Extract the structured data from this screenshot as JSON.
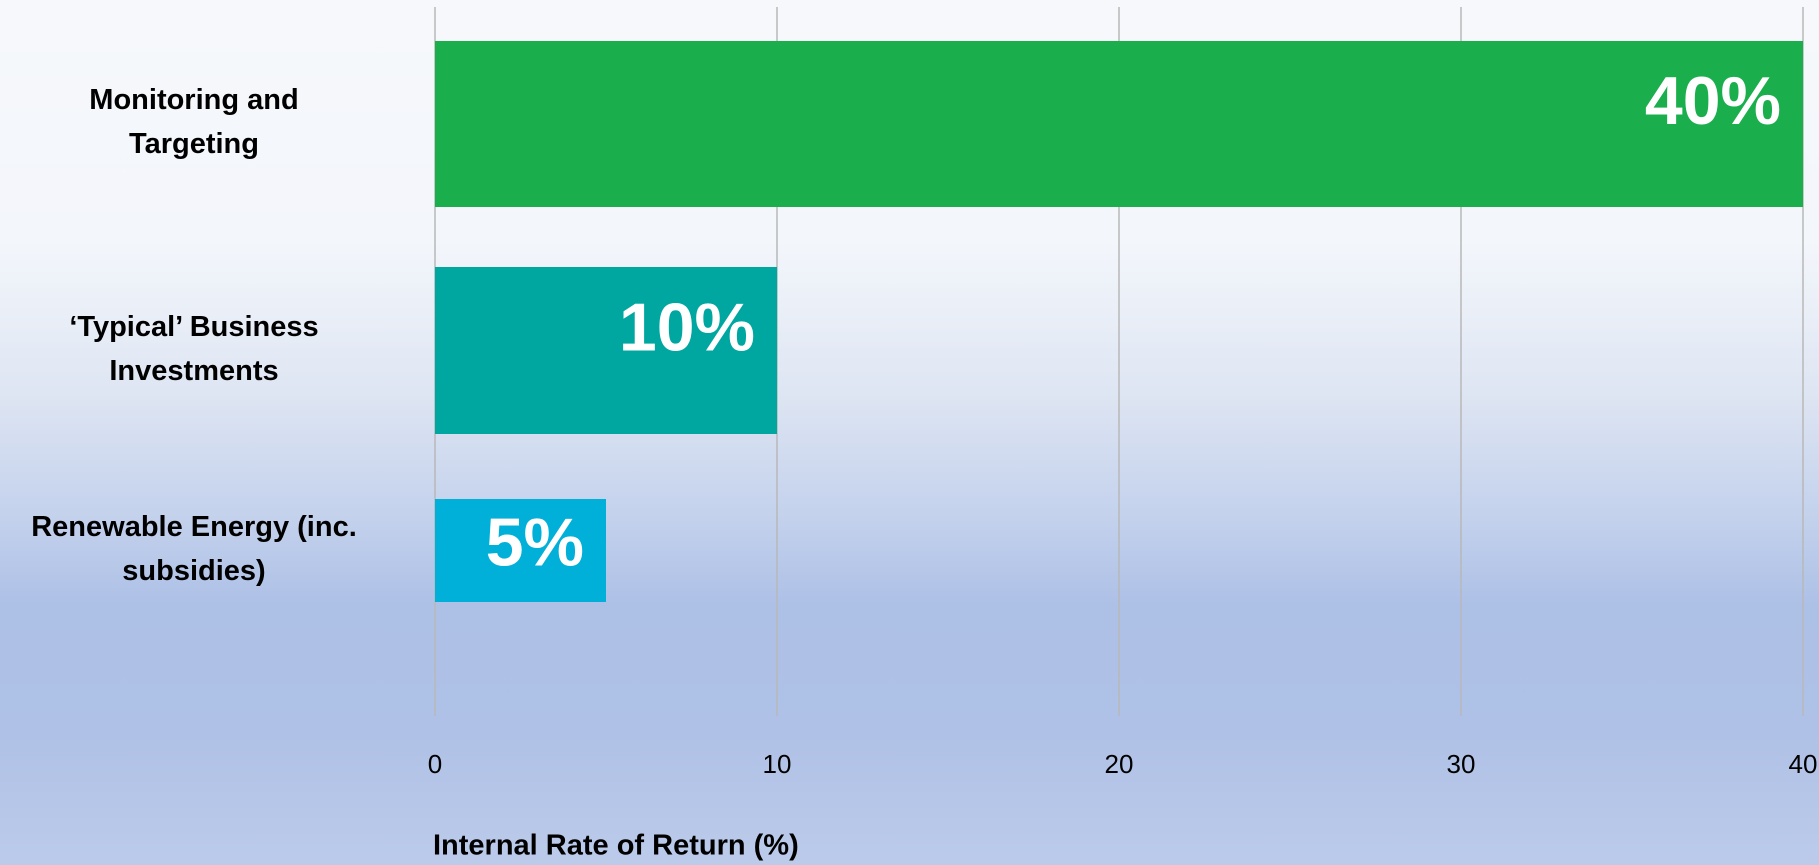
{
  "chart_data": {
    "type": "barh",
    "categories": [
      "Monitoring and Targeting",
      "‘Typical’ Business Investments",
      "Renewable Energy (inc. subsidies)"
    ],
    "values": [
      40,
      10,
      5
    ],
    "value_labels": [
      "40%",
      "10%",
      "5%"
    ],
    "colors": [
      "#1aaf4c",
      "#00a6a0",
      "#00b0d8"
    ],
    "xlabel": "Internal Rate of Return (%)",
    "xlim": [
      0,
      40
    ],
    "xticks": [
      0,
      10,
      20,
      30,
      40
    ],
    "grid": true
  }
}
